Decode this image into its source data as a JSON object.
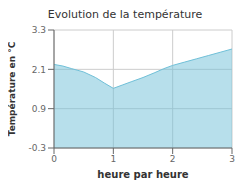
{
  "chart_data": {
    "type": "area",
    "title": "Evolution de la température",
    "x_label": "heure par heure",
    "y_label": "Température en °C",
    "x": [
      0,
      0.15,
      0.3,
      0.5,
      0.7,
      0.85,
      1.0,
      1.15,
      1.3,
      1.5,
      1.7,
      1.85,
      2.0,
      2.2,
      2.4,
      2.6,
      2.8,
      3.0
    ],
    "values": [
      2.25,
      2.2,
      2.12,
      2.02,
      1.85,
      1.68,
      1.52,
      1.62,
      1.72,
      1.85,
      2.0,
      2.12,
      2.22,
      2.32,
      2.42,
      2.52,
      2.62,
      2.72
    ],
    "color": "#70c0d8",
    "xlim": [
      0,
      3
    ],
    "xticks": [
      0,
      1,
      2,
      3
    ],
    "ylim": [
      -0.3,
      3.3
    ],
    "yticks": [
      -0.3,
      0.9,
      2.1,
      3.3
    ],
    "grid": true
  }
}
